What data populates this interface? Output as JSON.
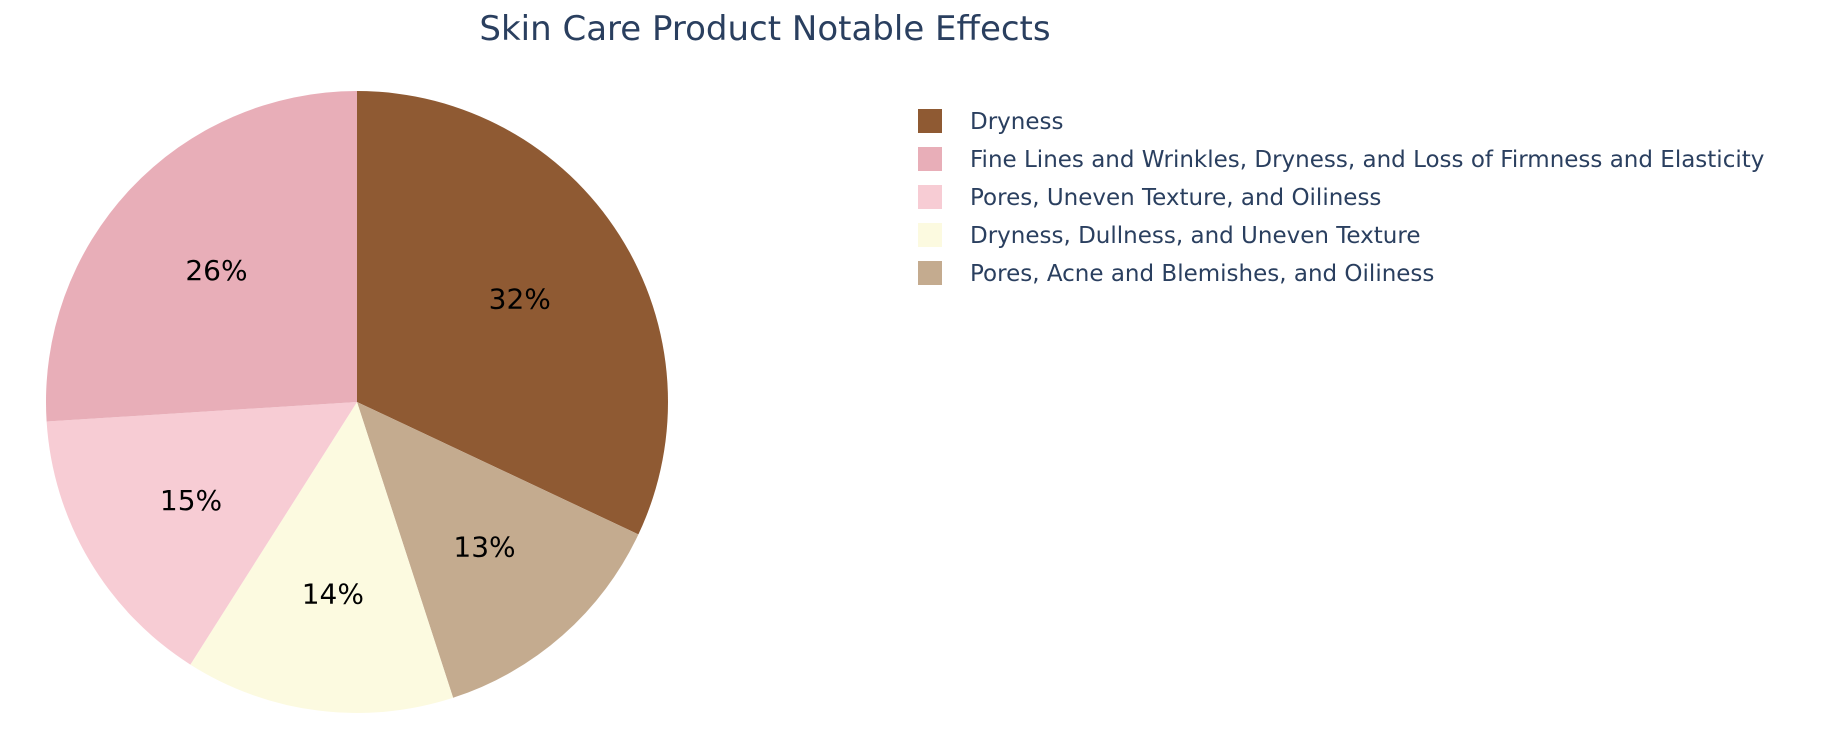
{
  "chart_data": {
    "type": "pie",
    "title": "Skin Care Product Notable Effects",
    "direction": "clockwise",
    "start_angle_deg": 0,
    "legend_placement": "top-right",
    "slices": [
      {
        "label": "Dryness",
        "value": 32,
        "display": "32%",
        "color": "#8f5a33"
      },
      {
        "label": "Pores, Acne and Blemishes, and Oiliness",
        "value": 13,
        "display": "13%",
        "color": "#c4ab8f"
      },
      {
        "label": "Dryness, Dullness, and Uneven Texture",
        "value": 14,
        "display": "14%",
        "color": "#fcfae0"
      },
      {
        "label": "Pores, Uneven Texture, and Oiliness",
        "value": 15,
        "display": "15%",
        "color": "#f7ccd4"
      },
      {
        "label": "Fine Lines and Wrinkles, Dryness, and Loss of Firmness and Elasticity",
        "value": 26,
        "display": "26%",
        "color": "#e8aeb8"
      }
    ],
    "legend_order": [
      "Dryness",
      "Fine Lines and Wrinkles, Dryness, and Loss of Firmness and Elasticity",
      "Pores, Uneven Texture, and Oiliness",
      "Dryness, Dullness, and Uneven Texture",
      "Pores, Acne and Blemishes, and Oiliness"
    ]
  }
}
